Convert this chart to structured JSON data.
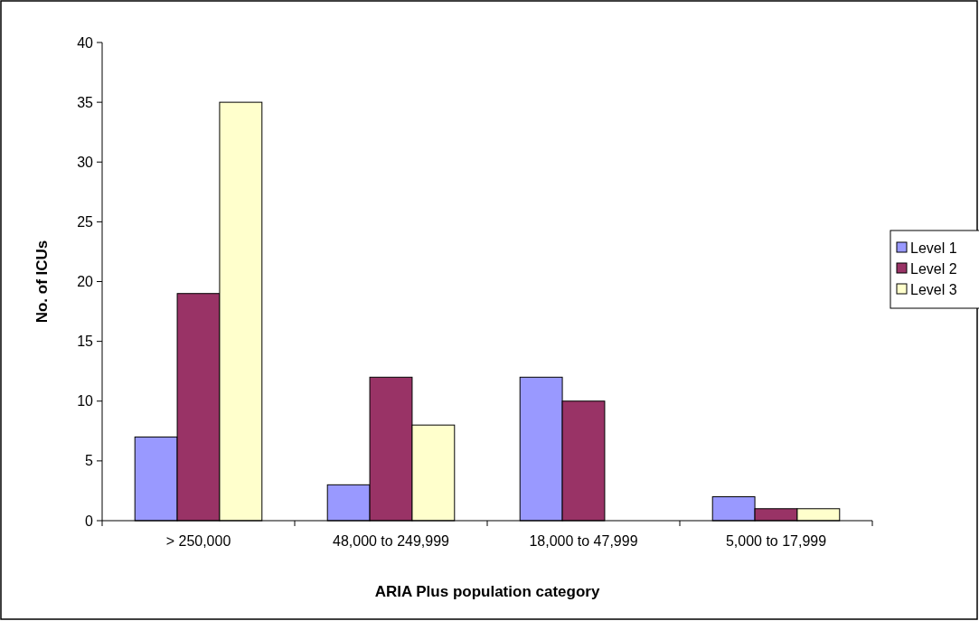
{
  "chart_data": {
    "type": "bar",
    "xlabel": "ARIA Plus population category",
    "ylabel": "No. of ICUs",
    "categories": [
      "> 250,000",
      "48,000 to 249,999",
      "18,000 to 47,999",
      "5,000 to 17,999"
    ],
    "series": [
      {
        "name": "Level 1",
        "color": "#9999ff",
        "values": [
          7,
          3,
          12,
          2
        ]
      },
      {
        "name": "Level 2",
        "color": "#993366",
        "values": [
          19,
          12,
          10,
          1
        ]
      },
      {
        "name": "Level 3",
        "color": "#ffffcc",
        "values": [
          35,
          8,
          0,
          1
        ]
      }
    ],
    "ylim": [
      0,
      40
    ],
    "yticks": [
      0,
      5,
      10,
      15,
      20,
      25,
      30,
      35,
      40
    ],
    "grid": false,
    "legend": "right"
  }
}
